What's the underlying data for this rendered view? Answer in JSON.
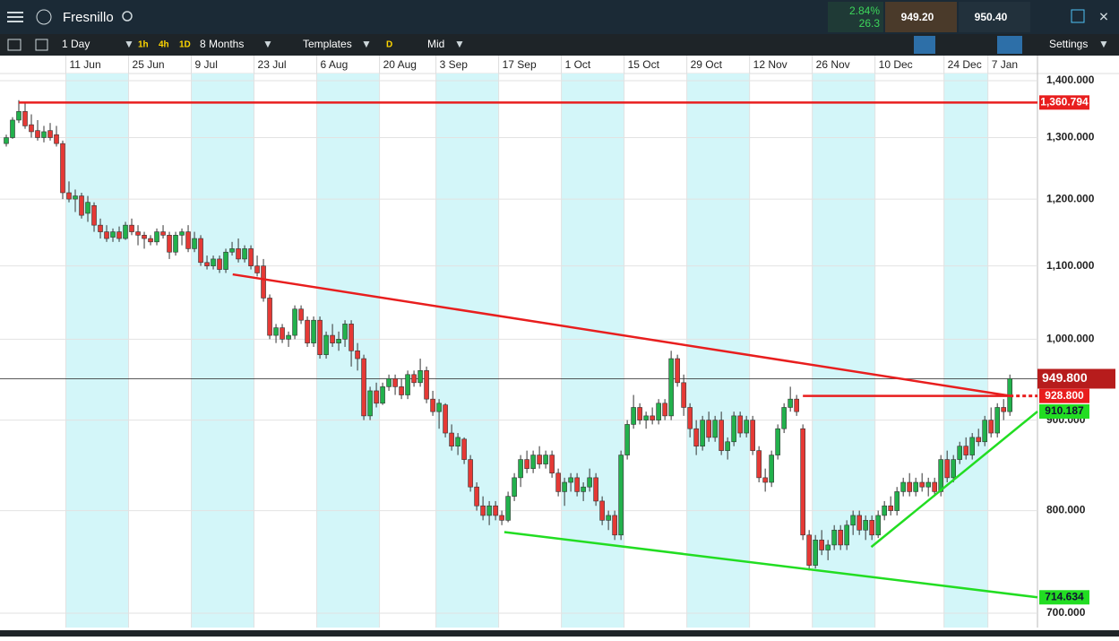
{
  "header": {
    "symbol": "Fresnillo",
    "change_pct": "2.84%",
    "change": "26.3",
    "sell": "949.20",
    "buy": "950.40"
  },
  "toolbar": {
    "interval": "1 Day",
    "quick": [
      "1h",
      "4h",
      "1D"
    ],
    "range": "8 Months",
    "templates": "Templates",
    "d": "D",
    "price_type": "Mid",
    "settings": "Settings"
  },
  "chart_data": {
    "type": "candlestick",
    "log_scale": true,
    "grid": true,
    "up_color": "#22b14c",
    "down_color": "#e53935",
    "ylim": [
      700,
      1400
    ],
    "yticks": [
      {
        "value": 700,
        "label": "700.000"
      },
      {
        "value": 800,
        "label": "800.000"
      },
      {
        "value": 900,
        "label": "900.000"
      },
      {
        "value": 1000,
        "label": "1,000.000"
      },
      {
        "value": 1100,
        "label": "1,100.000"
      },
      {
        "value": 1200,
        "label": "1,200.000"
      },
      {
        "value": 1300,
        "label": "1,300.000"
      },
      {
        "value": 1400,
        "label": "1,400.000"
      }
    ],
    "xlim": [
      -1,
      164.4
    ],
    "xticks": [
      {
        "value": 10,
        "label": "11 Jun"
      },
      {
        "value": 20,
        "label": "25 Jun"
      },
      {
        "value": 30,
        "label": "9 Jul"
      },
      {
        "value": 40,
        "label": "23 Jul"
      },
      {
        "value": 50,
        "label": "6 Aug"
      },
      {
        "value": 60,
        "label": "20 Aug"
      },
      {
        "value": 69,
        "label": "3 Sep"
      },
      {
        "value": 79,
        "label": "17 Sep"
      },
      {
        "value": 89,
        "label": "1 Oct"
      },
      {
        "value": 99,
        "label": "15 Oct"
      },
      {
        "value": 109,
        "label": "29 Oct"
      },
      {
        "value": 119,
        "label": "12 Nov"
      },
      {
        "value": 129,
        "label": "26 Nov"
      },
      {
        "value": 139,
        "label": "10 Dec"
      },
      {
        "value": 150,
        "label": "24 Dec"
      },
      {
        "value": 157,
        "label": "7 Jan"
      }
    ],
    "candles": [
      [
        1290,
        1305,
        1285,
        1300
      ],
      [
        1300,
        1335,
        1298,
        1330
      ],
      [
        1330,
        1365,
        1325,
        1345
      ],
      [
        1345,
        1360,
        1315,
        1320
      ],
      [
        1322,
        1340,
        1300,
        1310
      ],
      [
        1312,
        1330,
        1295,
        1300
      ],
      [
        1300,
        1320,
        1292,
        1310
      ],
      [
        1312,
        1325,
        1295,
        1300
      ],
      [
        1305,
        1320,
        1285,
        1290
      ],
      [
        1290,
        1295,
        1200,
        1210
      ],
      [
        1210,
        1228,
        1195,
        1200
      ],
      [
        1200,
        1215,
        1180,
        1205
      ],
      [
        1205,
        1210,
        1170,
        1175
      ],
      [
        1178,
        1205,
        1165,
        1195
      ],
      [
        1190,
        1195,
        1150,
        1160
      ],
      [
        1160,
        1170,
        1140,
        1150
      ],
      [
        1150,
        1160,
        1135,
        1140
      ],
      [
        1142,
        1155,
        1135,
        1150
      ],
      [
        1150,
        1158,
        1135,
        1140
      ],
      [
        1140,
        1165,
        1138,
        1160
      ],
      [
        1160,
        1170,
        1145,
        1150
      ],
      [
        1150,
        1160,
        1130,
        1145
      ],
      [
        1145,
        1150,
        1125,
        1140
      ],
      [
        1140,
        1145,
        1130,
        1135
      ],
      [
        1135,
        1155,
        1130,
        1150
      ],
      [
        1150,
        1160,
        1140,
        1145
      ],
      [
        1145,
        1150,
        1110,
        1120
      ],
      [
        1120,
        1150,
        1115,
        1145
      ],
      [
        1145,
        1155,
        1130,
        1150
      ],
      [
        1150,
        1160,
        1120,
        1125
      ],
      [
        1125,
        1150,
        1120,
        1140
      ],
      [
        1140,
        1145,
        1100,
        1105
      ],
      [
        1105,
        1115,
        1095,
        1100
      ],
      [
        1100,
        1115,
        1095,
        1110
      ],
      [
        1110,
        1115,
        1090,
        1095
      ],
      [
        1095,
        1125,
        1090,
        1120
      ],
      [
        1120,
        1135,
        1115,
        1125
      ],
      [
        1125,
        1140,
        1105,
        1110
      ],
      [
        1110,
        1130,
        1105,
        1125
      ],
      [
        1125,
        1130,
        1095,
        1100
      ],
      [
        1100,
        1115,
        1085,
        1090
      ],
      [
        1100,
        1110,
        1050,
        1055
      ],
      [
        1055,
        1060,
        1000,
        1005
      ],
      [
        1005,
        1020,
        995,
        1015
      ],
      [
        1015,
        1020,
        995,
        1000
      ],
      [
        1000,
        1010,
        990,
        1005
      ],
      [
        1005,
        1045,
        1000,
        1040
      ],
      [
        1040,
        1045,
        1020,
        1025
      ],
      [
        1025,
        1030,
        990,
        995
      ],
      [
        995,
        1030,
        990,
        1025
      ],
      [
        1025,
        1030,
        975,
        980
      ],
      [
        980,
        1010,
        975,
        1005
      ],
      [
        1005,
        1020,
        990,
        995
      ],
      [
        995,
        1010,
        985,
        1000
      ],
      [
        1000,
        1025,
        990,
        1020
      ],
      [
        1020,
        1025,
        965,
        985
      ],
      [
        985,
        995,
        960,
        975
      ],
      [
        975,
        980,
        900,
        905
      ],
      [
        905,
        940,
        900,
        935
      ],
      [
        935,
        945,
        915,
        920
      ],
      [
        920,
        945,
        918,
        940
      ],
      [
        940,
        955,
        935,
        950
      ],
      [
        950,
        955,
        930,
        940
      ],
      [
        940,
        950,
        925,
        930
      ],
      [
        930,
        960,
        925,
        955
      ],
      [
        955,
        960,
        940,
        945
      ],
      [
        945,
        975,
        940,
        960
      ],
      [
        960,
        965,
        920,
        925
      ],
      [
        925,
        935,
        905,
        910
      ],
      [
        910,
        925,
        890,
        920
      ],
      [
        918,
        920,
        880,
        885
      ],
      [
        885,
        895,
        865,
        870
      ],
      [
        870,
        885,
        860,
        880
      ],
      [
        878,
        880,
        850,
        855
      ],
      [
        855,
        860,
        820,
        825
      ],
      [
        825,
        830,
        800,
        805
      ],
      [
        805,
        815,
        790,
        795
      ],
      [
        795,
        810,
        785,
        805
      ],
      [
        805,
        810,
        790,
        795
      ],
      [
        795,
        800,
        785,
        790
      ],
      [
        790,
        820,
        788,
        815
      ],
      [
        815,
        840,
        810,
        835
      ],
      [
        835,
        860,
        825,
        855
      ],
      [
        855,
        865,
        840,
        845
      ],
      [
        845,
        865,
        840,
        860
      ],
      [
        860,
        870,
        845,
        850
      ],
      [
        850,
        865,
        845,
        860
      ],
      [
        860,
        865,
        835,
        840
      ],
      [
        840,
        845,
        815,
        820
      ],
      [
        820,
        835,
        805,
        830
      ],
      [
        830,
        840,
        820,
        835
      ],
      [
        835,
        840,
        815,
        820
      ],
      [
        820,
        830,
        810,
        825
      ],
      [
        825,
        845,
        820,
        835
      ],
      [
        835,
        840,
        805,
        810
      ],
      [
        810,
        815,
        785,
        790
      ],
      [
        790,
        800,
        780,
        795
      ],
      [
        795,
        800,
        770,
        775
      ],
      [
        775,
        865,
        770,
        860
      ],
      [
        860,
        900,
        855,
        895
      ],
      [
        895,
        930,
        890,
        915
      ],
      [
        915,
        920,
        895,
        900
      ],
      [
        900,
        910,
        890,
        905
      ],
      [
        905,
        915,
        895,
        900
      ],
      [
        900,
        925,
        895,
        920
      ],
      [
        920,
        925,
        900,
        905
      ],
      [
        905,
        985,
        900,
        975
      ],
      [
        975,
        980,
        940,
        945
      ],
      [
        945,
        955,
        905,
        915
      ],
      [
        915,
        920,
        880,
        890
      ],
      [
        890,
        900,
        860,
        870
      ],
      [
        870,
        905,
        865,
        900
      ],
      [
        900,
        910,
        875,
        880
      ],
      [
        880,
        905,
        875,
        900
      ],
      [
        900,
        910,
        860,
        865
      ],
      [
        865,
        880,
        855,
        875
      ],
      [
        875,
        910,
        870,
        905
      ],
      [
        905,
        910,
        880,
        885
      ],
      [
        885,
        905,
        880,
        900
      ],
      [
        900,
        905,
        860,
        865
      ],
      [
        865,
        870,
        830,
        835
      ],
      [
        835,
        845,
        820,
        830
      ],
      [
        830,
        865,
        825,
        860
      ],
      [
        860,
        895,
        855,
        890
      ],
      [
        890,
        920,
        885,
        915
      ],
      [
        915,
        940,
        910,
        925
      ],
      [
        925,
        930,
        905,
        910
      ],
      [
        890,
        895,
        770,
        775
      ],
      [
        775,
        780,
        740,
        745
      ],
      [
        745,
        775,
        742,
        770
      ],
      [
        770,
        780,
        755,
        760
      ],
      [
        760,
        770,
        750,
        765
      ],
      [
        765,
        785,
        760,
        780
      ],
      [
        780,
        785,
        760,
        765
      ],
      [
        765,
        790,
        760,
        785
      ],
      [
        785,
        800,
        775,
        795
      ],
      [
        795,
        800,
        775,
        780
      ],
      [
        780,
        795,
        770,
        790
      ],
      [
        790,
        795,
        770,
        775
      ],
      [
        775,
        800,
        772,
        795
      ],
      [
        795,
        810,
        790,
        805
      ],
      [
        805,
        815,
        795,
        800
      ],
      [
        800,
        825,
        795,
        820
      ],
      [
        820,
        835,
        815,
        830
      ],
      [
        830,
        840,
        815,
        820
      ],
      [
        820,
        835,
        815,
        830
      ],
      [
        830,
        840,
        820,
        825
      ],
      [
        825,
        835,
        815,
        830
      ],
      [
        830,
        835,
        815,
        820
      ],
      [
        820,
        860,
        815,
        855
      ],
      [
        855,
        865,
        830,
        835
      ],
      [
        835,
        860,
        830,
        855
      ],
      [
        855,
        875,
        850,
        870
      ],
      [
        870,
        880,
        855,
        860
      ],
      [
        860,
        885,
        855,
        880
      ],
      [
        880,
        890,
        870,
        875
      ],
      [
        875,
        905,
        870,
        900
      ],
      [
        900,
        915,
        880,
        885
      ],
      [
        885,
        920,
        880,
        915
      ],
      [
        915,
        925,
        900,
        910
      ],
      [
        910,
        955,
        905,
        950
      ]
    ],
    "lines": [
      {
        "color": "#e81e1e",
        "start": [
          2,
          1360.794
        ],
        "end": [
          164.4,
          1360.794
        ],
        "label": "1,360.794"
      },
      {
        "color": "#e81e1e",
        "start": [
          36.1,
          1088
        ],
        "end": [
          160,
          929
        ]
      },
      {
        "color": "#e81e1e",
        "start": [
          127,
          928.8
        ],
        "end": [
          160,
          928.8
        ],
        "label": "928.800"
      },
      {
        "color": "#22dd22",
        "start": [
          79.4,
          778
        ],
        "end": [
          164.4,
          714.634
        ],
        "label": "714.634"
      },
      {
        "color": "#22dd22",
        "start": [
          137.9,
          763
        ],
        "end": [
          164.4,
          910.187
        ],
        "label": "910.187"
      }
    ],
    "price_line": {
      "value": 949.8,
      "label": "949.800"
    }
  }
}
